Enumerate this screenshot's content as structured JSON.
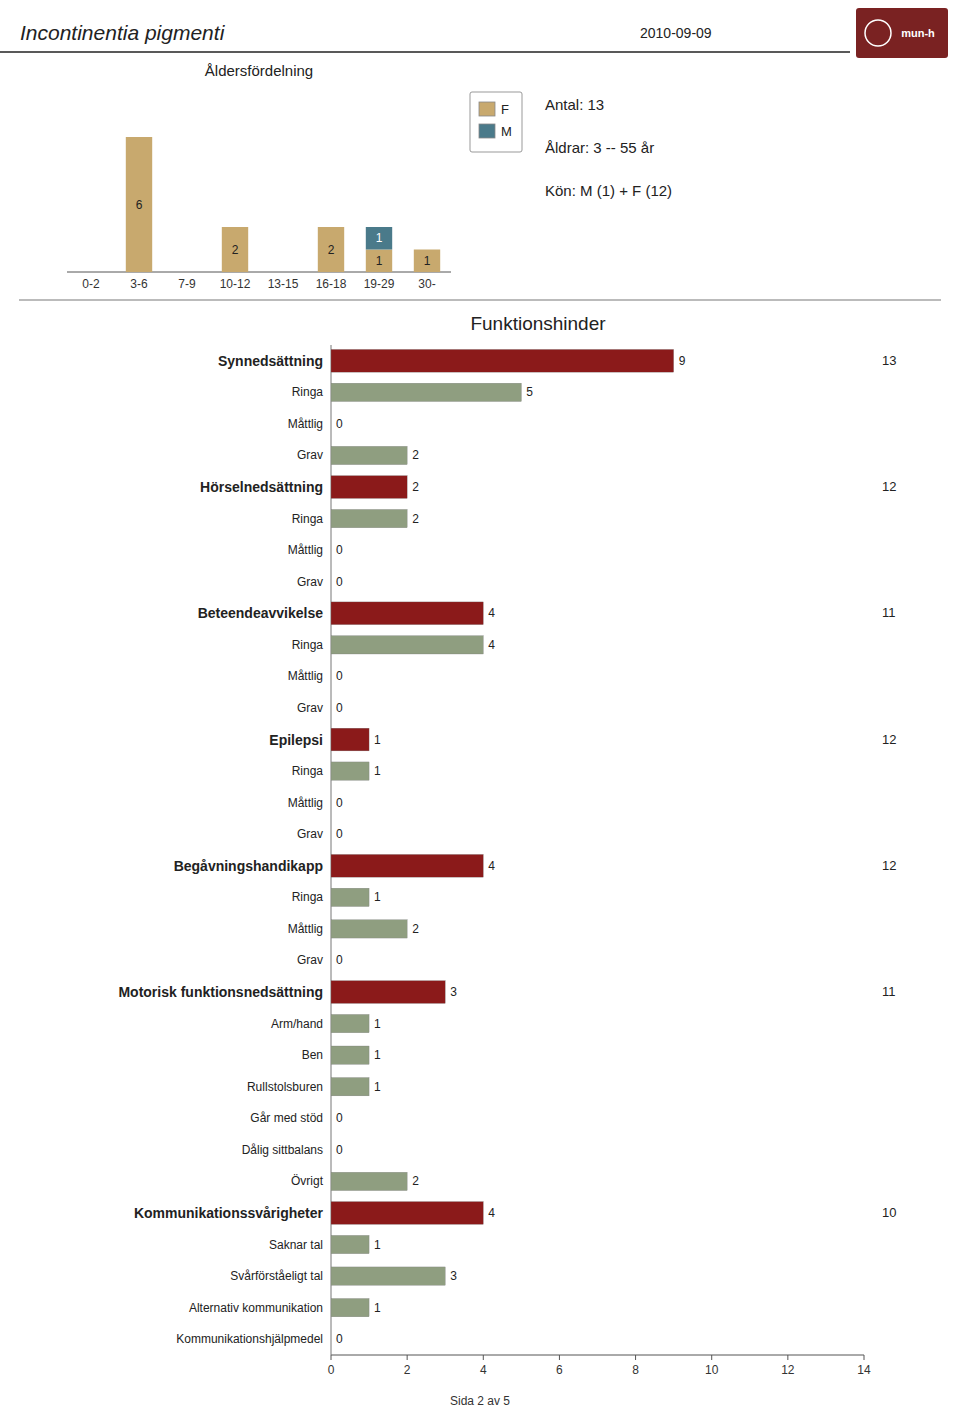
{
  "title": "Incontinentia pigmenti",
  "subtitle": "2010-09-09",
  "annotations": [
    "mun-h",
    "Sida 2 av 5"
  ],
  "chart_data": [
    {
      "type": "bar",
      "title": "Åldersfördelning",
      "stacked": true,
      "categories": [
        "0-2",
        "3-6",
        "7-9",
        "10-12",
        "13-15",
        "16-18",
        "19-29",
        "30-"
      ],
      "series": [
        {
          "name": "F",
          "color": "#c8a96e",
          "values": [
            0,
            6,
            0,
            2,
            0,
            2,
            1,
            1
          ]
        },
        {
          "name": "M",
          "color": "#4a7a8a",
          "values": [
            0,
            0,
            0,
            0,
            0,
            0,
            1,
            0
          ]
        }
      ],
      "ylim": [
        0,
        8
      ],
      "tick_labels": "x",
      "data_labels": true,
      "legend": "right",
      "grid": false,
      "annotations": [
        "Antal: 13",
        "Åldrar: 3 -- 55 år",
        "Kön: M (1) + F (12)"
      ]
    },
    {
      "type": "bar",
      "orientation": "horizontal",
      "title": "Funktionshinder",
      "categories": [
        "Synnedsättning",
        "Ringa",
        "Måttlig",
        "Grav",
        "Hörselnedsättning",
        "Ringa",
        "Måttlig",
        "Grav",
        "Beteendeavvikelse",
        "Ringa",
        "Måttlig",
        "Grav",
        "Epilepsi",
        "Ringa",
        "Måttlig",
        "Grav",
        "Begåvningshandikapp",
        "Ringa",
        "Måttlig",
        "Grav",
        "Motorisk funktionsnedsättning",
        "Arm/hand",
        "Ben",
        "Rullstolsburen",
        "Går med stöd",
        "Dålig sittbalans",
        "Övrigt",
        "Kommunikationssvårigheter",
        "Saknar tal",
        "Svårförståeligt tal",
        "Alternativ kommunikation",
        "Kommunikationshjälpmedel"
      ],
      "values": [
        9,
        5,
        0,
        2,
        2,
        2,
        0,
        0,
        4,
        4,
        0,
        0,
        1,
        1,
        0,
        0,
        4,
        1,
        2,
        0,
        3,
        1,
        1,
        1,
        0,
        0,
        2,
        4,
        1,
        3,
        1,
        0
      ],
      "colors": [
        "#8b1a1a",
        "#8f9e80",
        "#8f9e80",
        "#8f9e80",
        "#8b1a1a",
        "#8f9e80",
        "#8f9e80",
        "#8f9e80",
        "#8b1a1a",
        "#8f9e80",
        "#8f9e80",
        "#8f9e80",
        "#8b1a1a",
        "#8f9e80",
        "#8f9e80",
        "#8f9e80",
        "#8b1a1a",
        "#8f9e80",
        "#8f9e80",
        "#8f9e80",
        "#8b1a1a",
        "#8f9e80",
        "#8f9e80",
        "#8f9e80",
        "#8f9e80",
        "#8f9e80",
        "#8f9e80",
        "#8b1a1a",
        "#8f9e80",
        "#8f9e80",
        "#8f9e80",
        "#8f9e80"
      ],
      "n_values": [
        13,
        null,
        null,
        null,
        12,
        null,
        null,
        null,
        11,
        null,
        null,
        null,
        12,
        null,
        null,
        null,
        12,
        null,
        null,
        null,
        11,
        null,
        null,
        null,
        null,
        null,
        null,
        10,
        null,
        null,
        null,
        null
      ],
      "xlim": [
        0,
        14
      ],
      "xticks": [
        0,
        2,
        4,
        6,
        8,
        10,
        12,
        14
      ],
      "data_labels": true,
      "grid": false
    }
  ]
}
